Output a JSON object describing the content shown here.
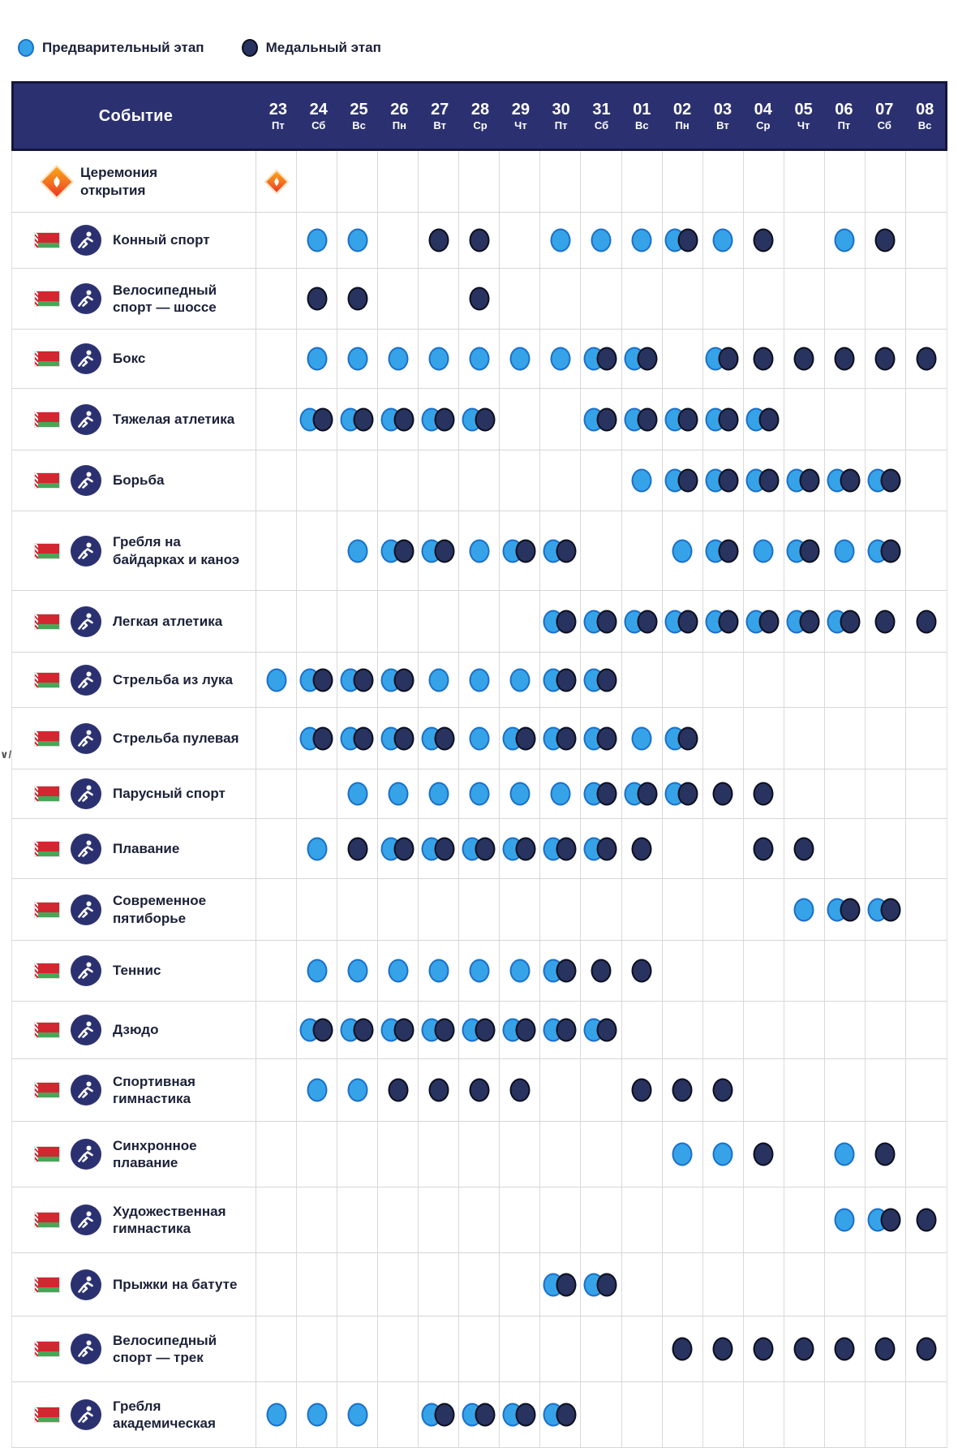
{
  "legend": {
    "preliminary": "Предварительный этап",
    "medal": "Медальный этап"
  },
  "colors": {
    "preliminary_dot": "#36a3e8",
    "medal_dot": "#28335f",
    "header_bg": "#2b3170",
    "flag_red": "#d22730",
    "flag_green": "#4aa657",
    "ceremony_orange": "#f26a21"
  },
  "header": {
    "event_label": "Событие",
    "days": [
      {
        "date": "23",
        "weekday": "Пт"
      },
      {
        "date": "24",
        "weekday": "Сб"
      },
      {
        "date": "25",
        "weekday": "Вс"
      },
      {
        "date": "26",
        "weekday": "Пн"
      },
      {
        "date": "27",
        "weekday": "Вт"
      },
      {
        "date": "28",
        "weekday": "Ср"
      },
      {
        "date": "29",
        "weekday": "Чт"
      },
      {
        "date": "30",
        "weekday": "Пт"
      },
      {
        "date": "31",
        "weekday": "Сб"
      },
      {
        "date": "01",
        "weekday": "Вс"
      },
      {
        "date": "02",
        "weekday": "Пн"
      },
      {
        "date": "03",
        "weekday": "Вт"
      },
      {
        "date": "04",
        "weekday": "Ср"
      },
      {
        "date": "05",
        "weekday": "Чт"
      },
      {
        "date": "06",
        "weekday": "Пт"
      },
      {
        "date": "07",
        "weekday": "Сб"
      },
      {
        "date": "08",
        "weekday": "Вс"
      }
    ]
  },
  "cell_codes": {
    "P": "preliminary",
    "M": "medal",
    "PM": "preliminary-and-medal",
    "C": "ceremony"
  },
  "rows": [
    {
      "label": "Церемония открытия",
      "icon": "opening-ceremony-icon",
      "type": "ceremony",
      "cells": {
        "0": "C"
      }
    },
    {
      "label": "Конный спорт",
      "icon": "equestrian-icon",
      "flag": "belarus",
      "cells": {
        "1": "P",
        "2": "P",
        "4": "M",
        "5": "M",
        "7": "P",
        "8": "P",
        "9": "P",
        "10": "PM",
        "11": "P",
        "12": "M",
        "14": "P",
        "15": "M"
      }
    },
    {
      "label": "Велосипедный спорт — шоссе",
      "icon": "road-cycling-icon",
      "flag": "belarus",
      "cells": {
        "1": "M",
        "2": "M",
        "5": "M"
      }
    },
    {
      "label": "Бокс",
      "icon": "boxing-icon",
      "flag": "belarus",
      "cells": {
        "1": "P",
        "2": "P",
        "3": "P",
        "4": "P",
        "5": "P",
        "6": "P",
        "7": "P",
        "8": "PM",
        "9": "PM",
        "11": "PM",
        "12": "M",
        "13": "M",
        "14": "M",
        "15": "M",
        "16": "M"
      }
    },
    {
      "label": "Тяжелая атлетика",
      "icon": "weightlifting-icon",
      "flag": "belarus",
      "cells": {
        "1": "PM",
        "2": "PM",
        "3": "PM",
        "4": "PM",
        "5": "PM",
        "8": "PM",
        "9": "PM",
        "10": "PM",
        "11": "PM",
        "12": "PM"
      }
    },
    {
      "label": "Борьба",
      "icon": "wrestling-icon",
      "flag": "belarus",
      "cells": {
        "9": "P",
        "10": "PM",
        "11": "PM",
        "12": "PM",
        "13": "PM",
        "14": "PM",
        "15": "PM"
      }
    },
    {
      "label": "Гребля на байдарках и каноэ",
      "icon": "canoe-sprint-icon",
      "flag": "belarus",
      "cells": {
        "2": "P",
        "3": "PM",
        "4": "PM",
        "5": "P",
        "6": "PM",
        "7": "PM",
        "10": "P",
        "11": "PM",
        "12": "P",
        "13": "PM",
        "14": "P",
        "15": "PM"
      }
    },
    {
      "label": "Легкая атлетика",
      "icon": "athletics-icon",
      "flag": "belarus",
      "cells": {
        "7": "PM",
        "8": "PM",
        "9": "PM",
        "10": "PM",
        "11": "PM",
        "12": "PM",
        "13": "PM",
        "14": "PM",
        "15": "M",
        "16": "M"
      }
    },
    {
      "label": "Стрельба из лука",
      "icon": "archery-icon",
      "flag": "belarus",
      "cells": {
        "0": "P",
        "1": "PM",
        "2": "PM",
        "3": "PM",
        "4": "P",
        "5": "P",
        "6": "P",
        "7": "PM",
        "8": "PM"
      }
    },
    {
      "label": "Стрельба пулевая",
      "icon": "shooting-icon",
      "flag": "belarus",
      "cells": {
        "1": "PM",
        "2": "PM",
        "3": "PM",
        "4": "PM",
        "5": "P",
        "6": "PM",
        "7": "PM",
        "8": "PM",
        "9": "P",
        "10": "PM"
      }
    },
    {
      "label": "Парусный спорт",
      "icon": "sailing-icon",
      "flag": "belarus",
      "cells": {
        "2": "P",
        "3": "P",
        "4": "P",
        "5": "P",
        "6": "P",
        "7": "P",
        "8": "PM",
        "9": "PM",
        "10": "PM",
        "11": "M",
        "12": "M"
      }
    },
    {
      "label": "Плавание",
      "icon": "swimming-icon",
      "flag": "belarus",
      "cells": {
        "1": "P",
        "2": "M",
        "3": "PM",
        "4": "PM",
        "5": "PM",
        "6": "PM",
        "7": "PM",
        "8": "PM",
        "9": "M",
        "12": "M",
        "13": "M"
      }
    },
    {
      "label": "Современное пятиборье",
      "icon": "modern-pentathlon-icon",
      "flag": "belarus",
      "cells": {
        "13": "P",
        "14": "PM",
        "15": "PM"
      }
    },
    {
      "label": "Теннис",
      "icon": "tennis-icon",
      "flag": "belarus",
      "cells": {
        "1": "P",
        "2": "P",
        "3": "P",
        "4": "P",
        "5": "P",
        "6": "P",
        "7": "PM",
        "8": "M",
        "9": "M"
      }
    },
    {
      "label": "Дзюдо",
      "icon": "judo-icon",
      "flag": "belarus",
      "cells": {
        "1": "PM",
        "2": "PM",
        "3": "PM",
        "4": "PM",
        "5": "PM",
        "6": "PM",
        "7": "PM",
        "8": "PM"
      }
    },
    {
      "label": "Спортивная гимнастика",
      "icon": "artistic-gymnastics-icon",
      "flag": "belarus",
      "cells": {
        "1": "P",
        "2": "P",
        "3": "M",
        "4": "M",
        "5": "M",
        "6": "M",
        "9": "M",
        "10": "M",
        "11": "M"
      }
    },
    {
      "label": "Синхронное плавание",
      "icon": "synchronized-swimming-icon",
      "flag": "belarus",
      "cells": {
        "10": "P",
        "11": "P",
        "12": "M",
        "14": "P",
        "15": "M"
      }
    },
    {
      "label": "Художественная гимнастика",
      "icon": "rhythmic-gymnastics-icon",
      "flag": "belarus",
      "cells": {
        "14": "P",
        "15": "PM",
        "16": "M"
      }
    },
    {
      "label": "Прыжки на батуте",
      "icon": "trampoline-icon",
      "flag": "belarus",
      "cells": {
        "7": "PM",
        "8": "PM"
      }
    },
    {
      "label": "Велосипедный спорт — трек",
      "icon": "track-cycling-icon",
      "flag": "belarus",
      "cells": {
        "10": "M",
        "11": "M",
        "12": "M",
        "13": "M",
        "14": "M",
        "15": "M",
        "16": "M"
      }
    },
    {
      "label": "Гребля академическая",
      "icon": "rowing-icon",
      "flag": "belarus",
      "cells": {
        "0": "P",
        "1": "P",
        "2": "P",
        "4": "PM",
        "5": "PM",
        "6": "PM",
        "7": "PM"
      }
    }
  ],
  "edge_artifact": "∨/"
}
